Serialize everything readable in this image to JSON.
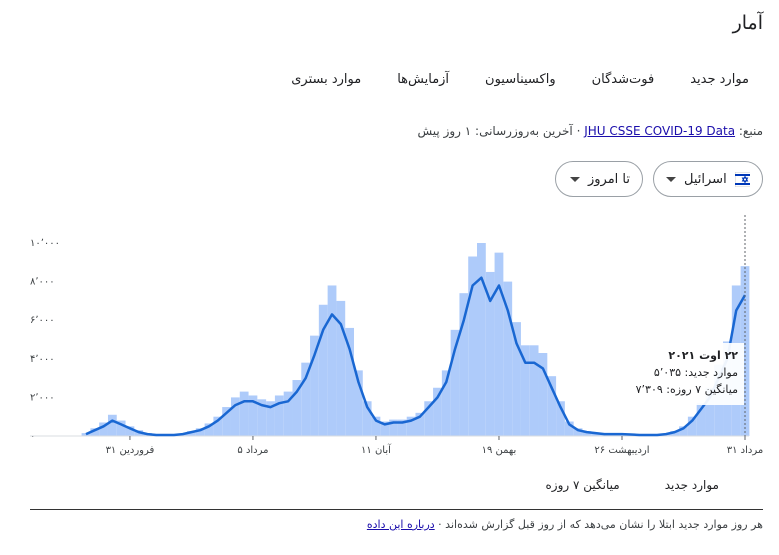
{
  "header": {
    "title": "آمار"
  },
  "tabs": [
    "موارد جدید",
    "فوت‌شدگان",
    "واکسیناسیون",
    "آزمایش‌ها",
    "موارد بستری"
  ],
  "source": {
    "label": "منبع:",
    "link": "JHU CSSE COVID-19 Data",
    "updated": "· آخرین به‌روزرسانی: ۱ روز پیش"
  },
  "filters": {
    "country": "اسرائیل",
    "range": "تا امروز"
  },
  "tooltip": {
    "date": "۲۲ اوت ۲۰۲۱",
    "lines": [
      "موارد جدید: ۵٬۰۳۵",
      "میانگین ۷ روزه: ۷٬۳۰۹"
    ]
  },
  "footer": {
    "note": "هر روز موارد جدید ابتلا را نشان می‌دهد که از روز قبل گزارش شده‌اند",
    "separator": "·",
    "link": "درباره این داده"
  },
  "chart_data": {
    "type": "bar_line",
    "categories": [
      null,
      null,
      null,
      null,
      null,
      "۳۱ فروردین",
      null,
      null,
      null,
      null,
      null,
      null,
      null,
      null,
      null,
      null,
      null,
      null,
      null,
      "۵ مرداد",
      null,
      null,
      null,
      null,
      null,
      null,
      null,
      null,
      null,
      null,
      null,
      null,
      null,
      "۱۱ آبان",
      null,
      null,
      null,
      null,
      null,
      null,
      null,
      null,
      null,
      null,
      null,
      null,
      null,
      "۱۹ بهمن",
      null,
      null,
      null,
      null,
      null,
      null,
      null,
      null,
      null,
      null,
      null,
      null,
      null,
      "۲۶ اردیبهشت",
      null,
      null,
      null,
      null,
      null,
      null,
      null,
      null,
      null,
      null,
      null,
      null,
      null,
      "۳۱ مرداد"
    ],
    "series": [
      {
        "name": "موارد جدید",
        "color": "#aecbfa",
        "values": [
          150,
          400,
          700,
          1100,
          800,
          500,
          300,
          150,
          80,
          60,
          60,
          120,
          250,
          400,
          650,
          1000,
          1500,
          2000,
          2300,
          2100,
          1900,
          1800,
          2100,
          2300,
          2900,
          3800,
          5200,
          6800,
          7800,
          7000,
          5600,
          3400,
          1800,
          1000,
          750,
          850,
          850,
          1000,
          1200,
          1800,
          2500,
          3400,
          5500,
          7400,
          9300,
          10000,
          8500,
          9500,
          8000,
          5900,
          4700,
          4700,
          4300,
          3100,
          1800,
          750,
          400,
          250,
          180,
          130,
          120,
          120,
          100,
          70,
          70,
          70,
          130,
          250,
          500,
          1000,
          1700,
          2500,
          3700,
          4900,
          7800,
          8800
        ]
      },
      {
        "name": "میانگین ۷ روزه",
        "color": "#1967d2",
        "values": [
          100,
          300,
          500,
          800,
          600,
          400,
          200,
          100,
          50,
          50,
          50,
          100,
          200,
          300,
          500,
          800,
          1200,
          1600,
          1800,
          1800,
          1600,
          1500,
          1700,
          1800,
          2300,
          3000,
          4200,
          5500,
          6300,
          5800,
          4500,
          2800,
          1500,
          800,
          600,
          700,
          700,
          800,
          1000,
          1500,
          2000,
          2800,
          4500,
          6000,
          7800,
          8200,
          7000,
          7800,
          6500,
          4800,
          3800,
          3800,
          3500,
          2500,
          1500,
          600,
          300,
          200,
          150,
          100,
          100,
          100,
          80,
          50,
          50,
          50,
          100,
          200,
          400,
          800,
          1400,
          2000,
          3000,
          4000,
          6500,
          7300
        ]
      }
    ],
    "ylim": [
      0,
      10000
    ],
    "yticks": [
      {
        "value": 0,
        "label": "۰"
      },
      {
        "value": 2000,
        "label": "۲٬۰۰۰"
      },
      {
        "value": 4000,
        "label": "۴٬۰۰۰"
      },
      {
        "value": 6000,
        "label": "۶٬۰۰۰"
      },
      {
        "value": 8000,
        "label": "۸٬۰۰۰"
      },
      {
        "value": 10000,
        "label": "۱۰٬۰۰۰"
      }
    ],
    "grid": false
  }
}
